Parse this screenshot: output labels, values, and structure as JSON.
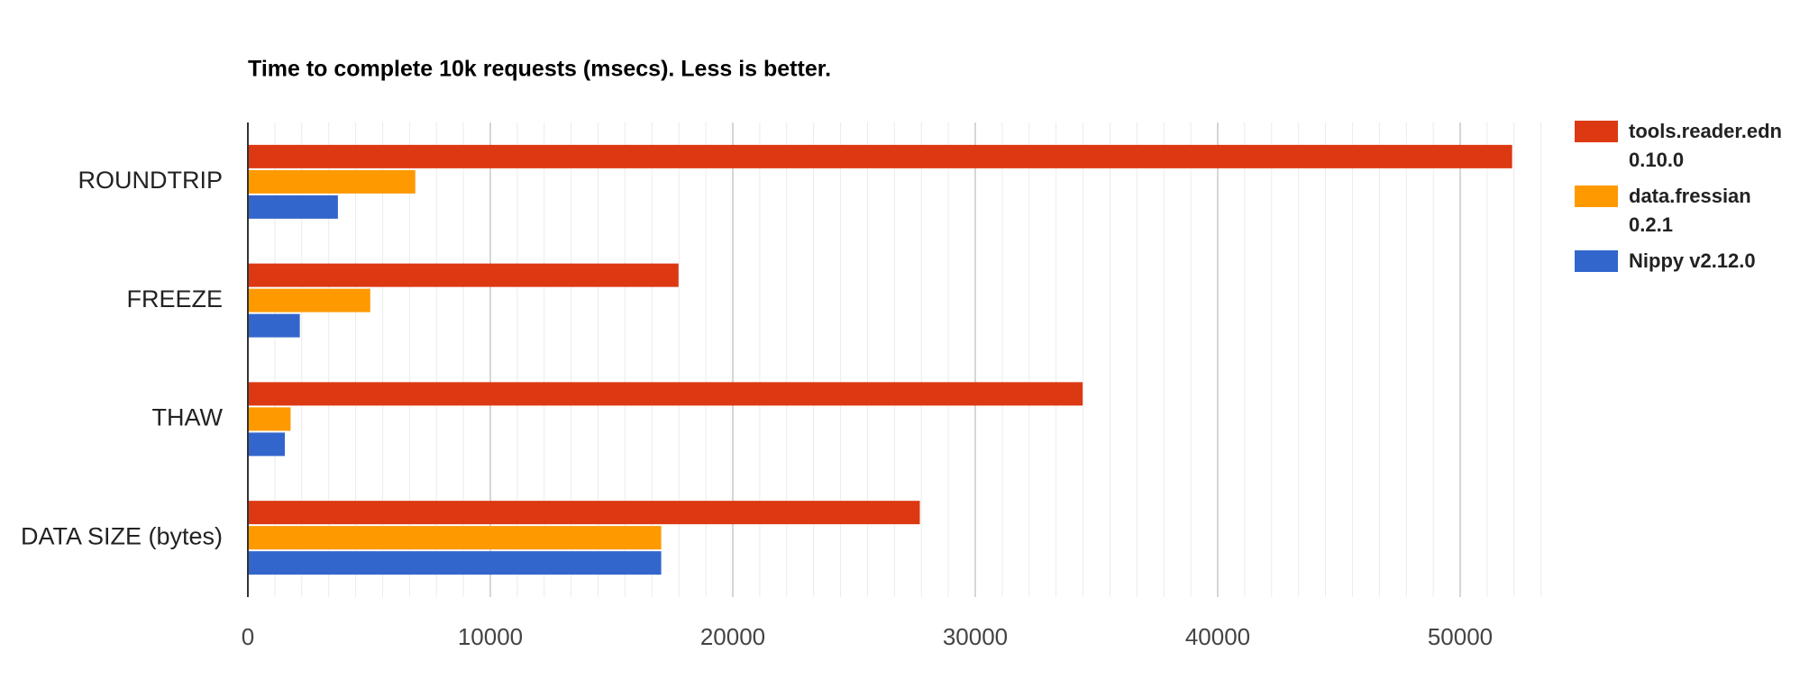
{
  "chart_data": {
    "type": "hbar",
    "title": "Time to complete 10k requests (msecs). Less is better.",
    "categories": [
      "ROUNDTRIP",
      "FREEZE",
      "THAW",
      "DATA SIZE (bytes)"
    ],
    "series": [
      {
        "name": "tools.reader.edn 0.10.0",
        "color": "#dc3912",
        "values": [
          52143,
          17762,
          34429,
          27714
        ]
      },
      {
        "name": "data.fressian 0.2.1",
        "color": "#ff9900",
        "values": [
          6905,
          5048,
          1762,
          17048
        ]
      },
      {
        "name": "Nippy v2.12.0",
        "color": "#3366cc",
        "values": [
          3714,
          2143,
          1524,
          17048
        ]
      }
    ],
    "xlim": [
      0,
      53333
    ],
    "xticks": [
      0,
      10000,
      20000,
      30000,
      40000,
      50000
    ],
    "grid": true,
    "minor_grid_divisions": 9,
    "legend": "right"
  }
}
